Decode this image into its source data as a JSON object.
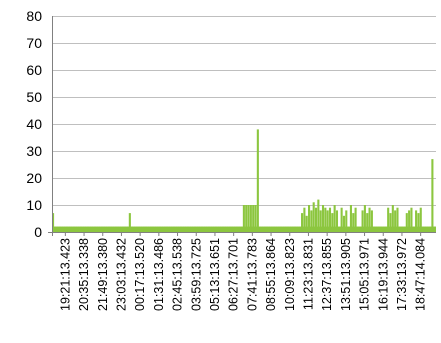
{
  "chart_data": {
    "type": "bar",
    "title": "",
    "xlabel": "",
    "ylabel": "",
    "ylim": [
      0,
      80
    ],
    "yticks": [
      0,
      10,
      20,
      30,
      40,
      50,
      60,
      70,
      80
    ],
    "grid": true,
    "legend": "none",
    "bar_color": "#8cc63f",
    "grid_color": "#bfbfbf",
    "x_tick_labels": [
      "19:21:13.423",
      "20:35:13.338",
      "21:49:13.380",
      "23:03:13.432",
      "00:17:13.520",
      "01:31:13.486",
      "02:45:13.538",
      "03:59:13.725",
      "05:13:13.651",
      "06:27:13.701",
      "07:41:13.783",
      "08:55:13.864",
      "10:09:13.823",
      "11:23:13.831",
      "12:37:13.855",
      "13:51:13.905",
      "15:05:13.971",
      "16:19:13.944",
      "17:33:13.972",
      "18:47:14.084"
    ],
    "baseline_value": 2,
    "values": [
      7,
      2,
      2,
      2,
      2,
      2,
      2,
      2,
      2,
      2,
      2,
      2,
      2,
      2,
      2,
      2,
      2,
      2,
      2,
      2,
      2,
      2,
      2,
      2,
      2,
      2,
      2,
      2,
      2,
      2,
      2,
      2,
      2,
      7,
      2,
      2,
      2,
      2,
      2,
      2,
      2,
      2,
      2,
      2,
      2,
      2,
      2,
      2,
      2,
      2,
      2,
      2,
      2,
      2,
      2,
      2,
      2,
      2,
      2,
      2,
      2,
      2,
      2,
      2,
      2,
      2,
      2,
      2,
      2,
      2,
      2,
      2,
      2,
      2,
      2,
      2,
      2,
      2,
      2,
      2,
      2,
      2,
      10,
      10,
      10,
      10,
      10,
      10,
      38,
      2,
      2,
      2,
      2,
      2,
      2,
      2,
      2,
      2,
      2,
      2,
      2,
      2,
      2,
      2,
      2,
      2,
      2,
      7,
      9,
      6,
      10,
      8,
      11,
      9,
      12,
      8,
      10,
      9,
      8,
      9,
      7,
      10,
      8,
      2,
      9,
      6,
      8,
      2,
      10,
      7,
      9,
      2,
      2,
      8,
      10,
      7,
      9,
      8,
      2,
      2,
      2,
      2,
      2,
      2,
      9,
      7,
      10,
      8,
      9,
      2,
      2,
      2,
      7,
      8,
      9,
      2,
      8,
      7,
      9,
      2,
      2,
      2,
      2,
      27,
      2
    ]
  }
}
